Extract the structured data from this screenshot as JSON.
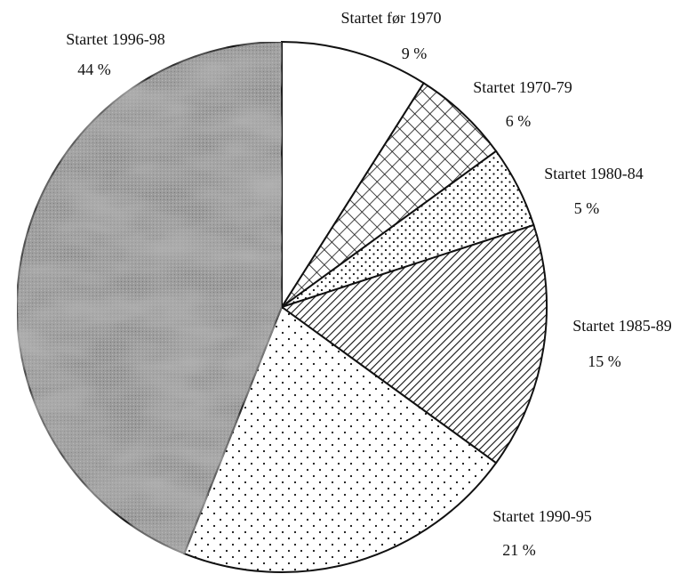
{
  "chart_data": {
    "type": "pie",
    "categories": [
      "Startet før 1970",
      "Startet 1970-79",
      "Startet 1980-84",
      "Startet 1985-89",
      "Startet 1990-95",
      "Startet 1996-98"
    ],
    "values": [
      9,
      6,
      5,
      15,
      21,
      44
    ],
    "value_labels": [
      "9 %",
      "6 %",
      "5 %",
      "15 %",
      "21 %",
      "44 %"
    ]
  }
}
